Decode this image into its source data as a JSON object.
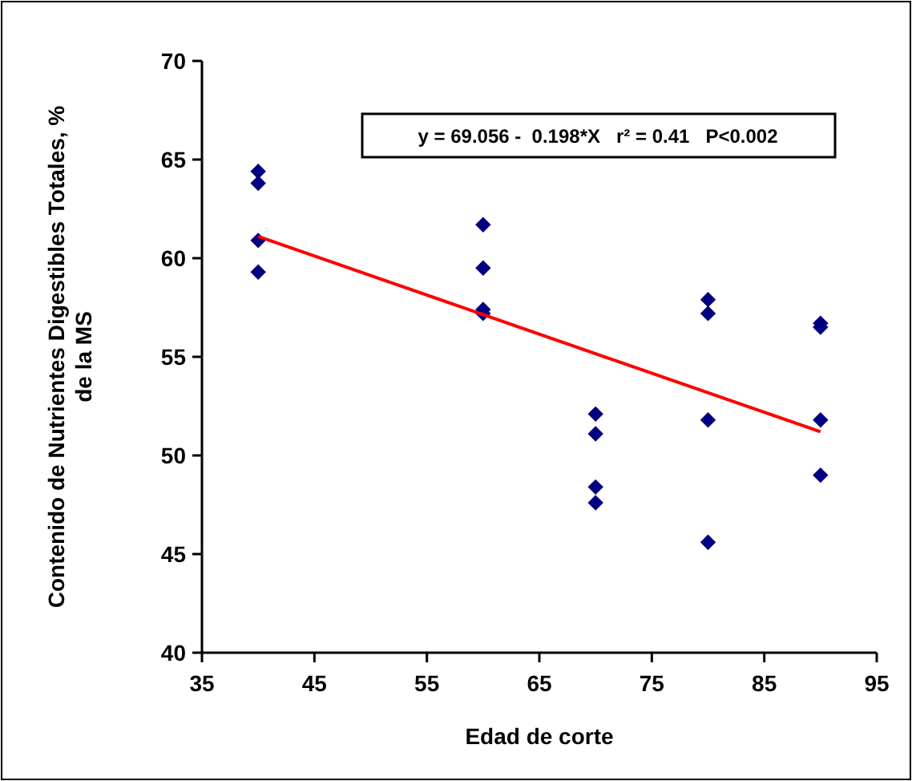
{
  "chart_data": {
    "type": "scatter",
    "xlabel": "Edad de corte",
    "ylabel": "Contenido de Nutrientes Digestibles Totales, %\nde la MS",
    "xlim": [
      35,
      95
    ],
    "xticks": [
      35,
      45,
      55,
      65,
      75,
      85,
      95
    ],
    "ylim": [
      40,
      70
    ],
    "yticks": [
      40,
      45,
      50,
      55,
      60,
      65,
      70
    ],
    "grid": false,
    "annotations": [
      "y = 69.056 -  0.198*X   r² = 0.41   P<0.002"
    ],
    "series": [
      {
        "marker": "diamond",
        "color": "#000080",
        "x": [
          40,
          40,
          40,
          40,
          60,
          60,
          60,
          60,
          70,
          70,
          70,
          70,
          80,
          80,
          80,
          80,
          90,
          90,
          90,
          90
        ],
        "values": [
          64.4,
          63.8,
          60.9,
          59.3,
          61.7,
          59.5,
          57.4,
          57.2,
          52.1,
          51.1,
          48.4,
          47.6,
          57.9,
          57.2,
          51.8,
          45.6,
          56.7,
          56.5,
          51.8,
          49.0
        ]
      },
      {
        "type": "line",
        "marker": "none",
        "color": "#ff0000",
        "x": [
          40,
          90
        ],
        "values": [
          61.1,
          51.2
        ]
      }
    ]
  }
}
